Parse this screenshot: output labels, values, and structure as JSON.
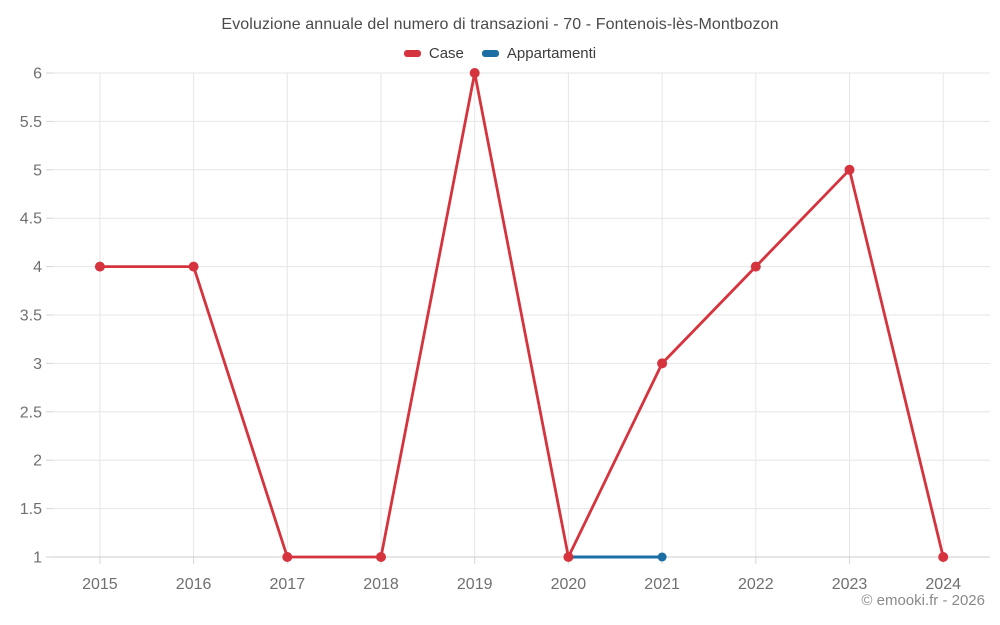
{
  "title": "Evoluzione annuale del numero di transazioni - 70 - Fontenois-lès-Montbozon",
  "footer": "© emooki.fr - 2026",
  "legend": [
    {
      "label": "Case",
      "color": "#d5343e"
    },
    {
      "label": "Appartamenti",
      "color": "#1a6ea3"
    }
  ],
  "chart_data": {
    "type": "line",
    "title": "Evoluzione annuale del numero di transazioni - 70 - Fontenois-lès-Montbozon",
    "x": [
      2015,
      2016,
      2017,
      2018,
      2019,
      2020,
      2021,
      2022,
      2023,
      2024
    ],
    "series": [
      {
        "name": "Case",
        "color": "#d5343e",
        "line_width": 2.8,
        "marker_radius": 5,
        "points": [
          [
            2015,
            4
          ],
          [
            2016,
            4
          ],
          [
            2017,
            1
          ],
          [
            2018,
            1
          ],
          [
            2019,
            6
          ],
          [
            2020,
            1
          ],
          [
            2021,
            3
          ],
          [
            2022,
            4
          ],
          [
            2023,
            5
          ],
          [
            2024,
            1
          ]
        ]
      },
      {
        "name": "Appartamenti",
        "color": "#1a6ea3",
        "line_width": 3,
        "marker_radius": 4.5,
        "points": [
          [
            2020,
            1
          ],
          [
            2021,
            1
          ]
        ]
      }
    ],
    "xlabel": "",
    "ylabel": "",
    "ylim": [
      1,
      6
    ],
    "yticks": [
      1,
      1.5,
      2,
      2.5,
      3,
      3.5,
      4,
      4.5,
      5,
      5.5,
      6
    ],
    "grid": true,
    "legend_position": "top",
    "style": {
      "grid_color": "#e6e6e6",
      "axis_color": "#cccccc",
      "tick_color": "#d6d6d6",
      "label_color": "#707070",
      "title_color": "#4a4a4a"
    }
  }
}
